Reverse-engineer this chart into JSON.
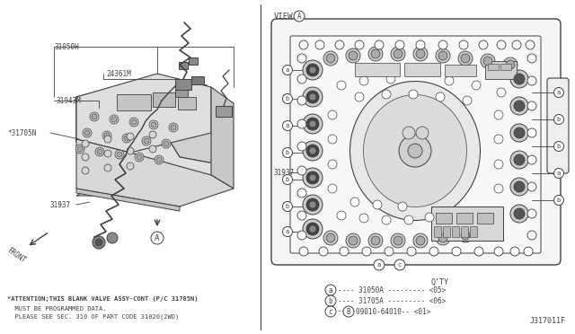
{
  "bg_color": "#ffffff",
  "lc": "#404040",
  "tc": "#404040",
  "fig_width": 6.4,
  "fig_height": 3.72,
  "dpi": 100,
  "attn1": "*ATTENTION;THIS BLANK VALVE ASSY-CONT (P/C 31705N)",
  "attn2": "  MUST BE PROGRAMMED DATA.",
  "attn3": "  PLEASE SEE SEC. 310 OF PART CODE 31020(2WD)",
  "ref": "J317011F",
  "qty": "Q'TY",
  "leg_a": "---- 31050A --------- <05>",
  "leg_b": "---- 31705A --------- <06>",
  "leg_c1": "--",
  "leg_c2": "09010-64010-- <01>",
  "view_txt": "VIEW",
  "lbl_31050H": "31050H",
  "lbl_24361M": "24361M",
  "lbl_31943M": "31943M",
  "lbl_31705N": "*31705N",
  "lbl_31937L": "31937",
  "lbl_31937R": "31937",
  "front": "FRONT"
}
